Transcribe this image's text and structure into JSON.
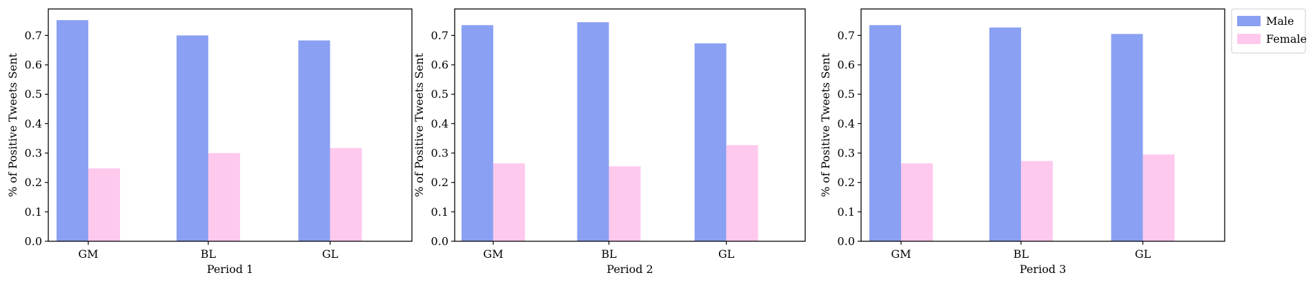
{
  "chart_data": [
    {
      "type": "bar",
      "categories": [
        "GM",
        "BL",
        "GL"
      ],
      "series": [
        {
          "name": "Male",
          "values": [
            0.752,
            0.7,
            0.683
          ]
        },
        {
          "name": "Female",
          "values": [
            0.248,
            0.3,
            0.317
          ]
        }
      ],
      "title": "",
      "xlabel": "Period 1",
      "ylabel": "% of Positive Tweets Sent",
      "ylim": [
        0,
        0.79
      ],
      "yticks": [
        "0.0",
        "0.1",
        "0.2",
        "0.3",
        "0.4",
        "0.5",
        "0.6",
        "0.7"
      ]
    },
    {
      "type": "bar",
      "categories": [
        "GM",
        "BL",
        "GL"
      ],
      "series": [
        {
          "name": "Male",
          "values": [
            0.735,
            0.745,
            0.673
          ]
        },
        {
          "name": "Female",
          "values": [
            0.265,
            0.255,
            0.327
          ]
        }
      ],
      "title": "",
      "xlabel": "Period 2",
      "ylabel": "% of Positive Tweets Sent",
      "ylim": [
        0,
        0.79
      ],
      "yticks": [
        "0.0",
        "0.1",
        "0.2",
        "0.3",
        "0.4",
        "0.5",
        "0.6",
        "0.7"
      ]
    },
    {
      "type": "bar",
      "categories": [
        "GM",
        "BL",
        "GL"
      ],
      "series": [
        {
          "name": "Male",
          "values": [
            0.735,
            0.727,
            0.705
          ]
        },
        {
          "name": "Female",
          "values": [
            0.265,
            0.273,
            0.295
          ]
        }
      ],
      "title": "",
      "xlabel": "Period 3",
      "ylabel": "% of Positive Tweets Sent",
      "ylim": [
        0,
        0.79
      ],
      "yticks": [
        "0.0",
        "0.1",
        "0.2",
        "0.3",
        "0.4",
        "0.5",
        "0.6",
        "0.7"
      ]
    }
  ],
  "legend": {
    "placement": "right",
    "entries": [
      {
        "label": "Male",
        "color": "#8aa0f2"
      },
      {
        "label": "Female",
        "color": "#ffc9ee"
      }
    ]
  },
  "colors": {
    "male": "#8aa0f2",
    "female": "#ffc9ee"
  },
  "grid": false
}
